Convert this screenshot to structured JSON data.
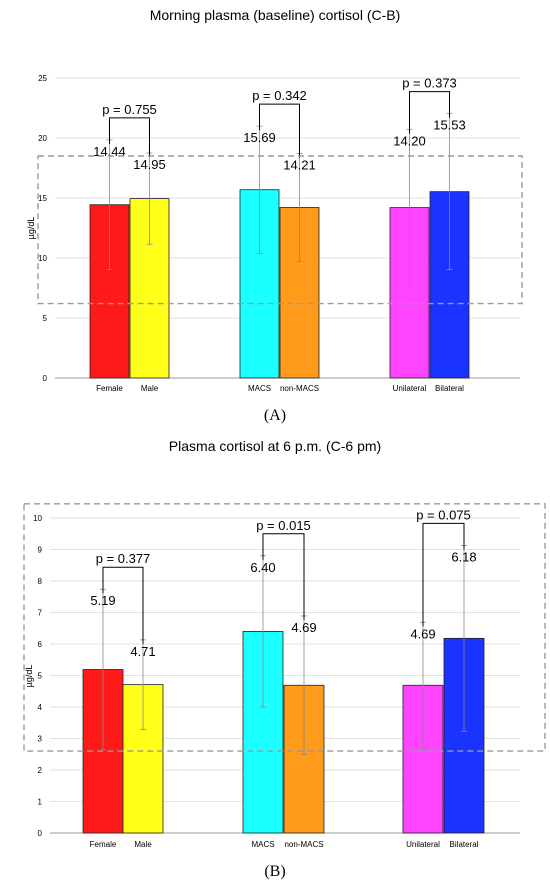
{
  "chart_data": [
    {
      "panel": "(A)",
      "type": "bar",
      "title": "Morning plasma (baseline) cortisol (C-B)",
      "ylabel": "µg/dL",
      "ylim": [
        0,
        25
      ],
      "yticks": [
        0,
        5,
        10,
        15,
        20,
        25
      ],
      "grid": true,
      "categories": [
        "Female",
        "Male",
        "MACS",
        "non-MACS",
        "Unilateral",
        "Bilateral"
      ],
      "values": [
        14.44,
        14.95,
        15.69,
        14.21,
        14.2,
        15.53
      ],
      "value_labels": [
        "14.44",
        "14.95",
        "15.69",
        "14.21",
        "14.20",
        "15.53"
      ],
      "error": [
        5.4,
        3.8,
        5.3,
        4.5,
        6.5,
        6.5
      ],
      "colors": [
        "#ff1a1a",
        "#ffff1a",
        "#1affff",
        "#ff9a1a",
        "#ff44ff",
        "#1a33ff"
      ],
      "comparisons": [
        {
          "label": "p = 0.755",
          "pair": [
            0,
            1
          ]
        },
        {
          "label": "p = 0.342",
          "pair": [
            2,
            3
          ]
        },
        {
          "label": "p = 0.373",
          "pair": [
            4,
            5
          ]
        }
      ],
      "dashed_box_range": [
        6.2,
        18.5
      ]
    },
    {
      "panel": "(B)",
      "type": "bar",
      "title": "Plasma cortisol at 6 p.m. (C-6 pm)",
      "ylabel": "µg/dL",
      "ylim": [
        0,
        10
      ],
      "yticks": [
        0,
        1,
        2,
        3,
        4,
        5,
        6,
        7,
        8,
        9,
        10
      ],
      "grid": true,
      "categories": [
        "Female",
        "Male",
        "MACS",
        "non-MACS",
        "Unilateral",
        "Bilateral"
      ],
      "values": [
        5.19,
        4.71,
        6.4,
        4.69,
        4.69,
        6.18
      ],
      "value_labels": [
        "5.19",
        "4.71",
        "6.40",
        "4.69",
        "4.69",
        "6.18"
      ],
      "error": [
        2.55,
        1.42,
        2.4,
        2.2,
        2.0,
        2.95
      ],
      "colors": [
        "#ff1a1a",
        "#ffff1a",
        "#1affff",
        "#ff9a1a",
        "#ff44ff",
        "#1a33ff"
      ],
      "comparisons": [
        {
          "label": "p = 0.377",
          "pair": [
            0,
            1
          ]
        },
        {
          "label": "p = 0.015",
          "pair": [
            2,
            3
          ]
        },
        {
          "label": "p = 0.075",
          "pair": [
            4,
            5
          ]
        }
      ],
      "dashed_box_range": [
        2.6,
        10.45
      ]
    }
  ]
}
